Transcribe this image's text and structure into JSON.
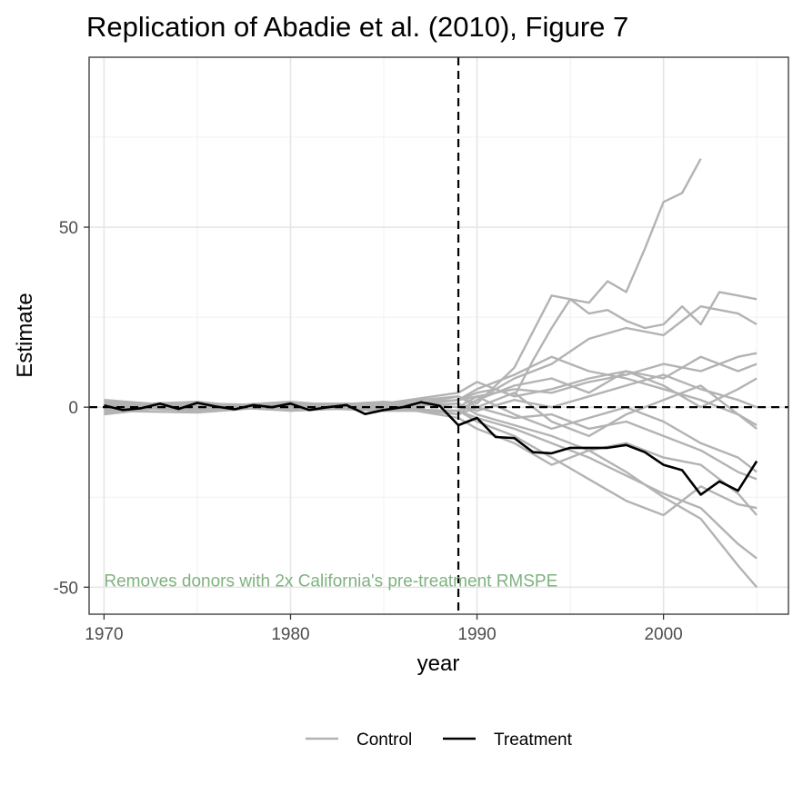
{
  "chart_data": {
    "type": "line",
    "title": "Replication of Abadie et al. (2010), Figure 7",
    "xlabel": "year",
    "ylabel": "Estimate",
    "xlim": [
      1969.2,
      2006.7
    ],
    "ylim": [
      -57.5,
      97.2
    ],
    "x_ticks": [
      1970,
      1980,
      1990,
      2000
    ],
    "x_tick_labels": [
      "1970",
      "1980",
      "1990",
      "2000"
    ],
    "y_ticks": [
      -50,
      0,
      50
    ],
    "y_tick_labels": [
      "-50",
      "0",
      "50"
    ],
    "grid": true,
    "treatment_year": 1989,
    "annotation": {
      "text": "Removes donors with 2x California's pre-treatment  RMSPE",
      "x": 1970,
      "y": -48
    },
    "legend": {
      "position": "bottom",
      "entries": [
        {
          "label": "Control"
        },
        {
          "label": "Treatment"
        }
      ]
    },
    "colors": {
      "control": "#b3b3b3",
      "treatment": "#000000",
      "annotation": "#7fb27f"
    },
    "treatment": {
      "name": "Treatment",
      "x": [
        1970,
        1971,
        1972,
        1973,
        1974,
        1975,
        1976,
        1977,
        1978,
        1979,
        1980,
        1981,
        1982,
        1983,
        1984,
        1985,
        1986,
        1987,
        1988,
        1989,
        1990,
        1991,
        1992,
        1993,
        1994,
        1995,
        1996,
        1997,
        1998,
        1999,
        2000,
        2001,
        2002,
        2003,
        2004,
        2005
      ],
      "values": [
        0.5,
        -0.8,
        -0.3,
        1.0,
        -0.5,
        1.2,
        0.2,
        -0.6,
        0.6,
        0.0,
        1.0,
        -0.8,
        0.0,
        0.6,
        -1.9,
        -0.8,
        0.0,
        1.4,
        0.4,
        -5.0,
        -3.0,
        -8.3,
        -8.6,
        -12.5,
        -12.8,
        -11.3,
        -11.3,
        -11.3,
        -10.5,
        -12.5,
        -16.0,
        -17.5,
        -24.3,
        -20.6,
        -23.2,
        -15.0
      ]
    },
    "controls": [
      {
        "x": [
          1970,
          1975,
          1980,
          1985,
          1989,
          1990,
          1991,
          1992,
          1993,
          1994,
          1995,
          1996,
          1997,
          1998,
          1999,
          2000,
          2001,
          2002
        ],
        "values": [
          0.5,
          1.5,
          -1.0,
          0.5,
          2.0,
          4.0,
          5.0,
          3.0,
          13.0,
          22.0,
          30.0,
          29.0,
          35.0,
          32.0,
          44.0,
          57.0,
          59.5,
          69.0
        ]
      },
      {
        "x": [
          1970,
          1975,
          1980,
          1985,
          1989,
          1990,
          1991,
          1992,
          1993,
          1994,
          1995,
          1996,
          1997,
          1998,
          1999,
          2000,
          2001,
          2002,
          2003,
          2004,
          2005
        ],
        "values": [
          -0.5,
          1.0,
          0.5,
          -0.5,
          3.0,
          1.0,
          6.0,
          11.0,
          21.0,
          31.0,
          30.0,
          26.0,
          27.0,
          24.0,
          22.0,
          23.0,
          28.0,
          23.0,
          32.0,
          31.0,
          30.0
        ]
      },
      {
        "x": [
          1970,
          1975,
          1980,
          1985,
          1989,
          1990,
          1992,
          1994,
          1996,
          1998,
          2000,
          2002,
          2004,
          2005
        ],
        "values": [
          1.0,
          -1.0,
          0.5,
          1.0,
          -2.0,
          2.0,
          8.0,
          12.0,
          19.0,
          22.0,
          20.0,
          28.0,
          26.0,
          23.0
        ]
      },
      {
        "x": [
          1970,
          1975,
          1980,
          1985,
          1989,
          1990,
          1992,
          1994,
          1996,
          1998,
          2000,
          2002,
          2004,
          2005
        ],
        "values": [
          -1.0,
          0.5,
          -0.5,
          0.0,
          1.0,
          -2.0,
          -5.0,
          -8.0,
          -12.0,
          -18.0,
          -25.0,
          -31.0,
          -44.0,
          -50.0
        ]
      },
      {
        "x": [
          1970,
          1975,
          1980,
          1985,
          1989,
          1990,
          1992,
          1994,
          1996,
          1998,
          2000,
          2002,
          2004,
          2005
        ],
        "values": [
          0.5,
          -0.5,
          1.0,
          -1.0,
          -1.0,
          -3.0,
          -6.0,
          -10.0,
          -14.0,
          -19.0,
          -24.0,
          -28.0,
          -38.0,
          -42.0
        ]
      },
      {
        "x": [
          1970,
          1975,
          1980,
          1985,
          1989,
          1990,
          1992,
          1994,
          1996,
          1998,
          2000,
          2002,
          2004,
          2005
        ],
        "values": [
          2.0,
          0.0,
          -0.5,
          0.5,
          2.0,
          3.0,
          5.0,
          4.0,
          7.0,
          9.0,
          12.0,
          10.0,
          14.0,
          15.0
        ]
      },
      {
        "x": [
          1970,
          1975,
          1980,
          1985,
          1989,
          1990,
          1992,
          1994,
          1996,
          1998,
          2000,
          2002,
          2004,
          2005
        ],
        "values": [
          -1.5,
          1.0,
          0.0,
          -1.0,
          -1.0,
          -4.0,
          -8.0,
          -14.0,
          -20.0,
          -26.0,
          -30.0,
          -22.0,
          -27.0,
          -28.0
        ]
      },
      {
        "x": [
          1970,
          1975,
          1980,
          1985,
          1989,
          1990,
          1992,
          1994,
          1996,
          1998,
          2000,
          2002,
          2004,
          2005
        ],
        "values": [
          0.5,
          -1.0,
          0.5,
          1.0,
          4.0,
          7.0,
          3.0,
          5.0,
          8.0,
          10.0,
          6.0,
          0.0,
          5.0,
          8.0
        ]
      },
      {
        "x": [
          1970,
          1975,
          1980,
          1985,
          1989,
          1990,
          1992,
          1994,
          1996,
          1998,
          2000,
          2002,
          2004,
          2005
        ],
        "values": [
          -0.5,
          0.5,
          -1.0,
          0.0,
          -2.0,
          0.0,
          -3.0,
          -2.0,
          -6.0,
          -4.0,
          -8.0,
          -12.0,
          -18.0,
          -20.0
        ]
      },
      {
        "x": [
          1970,
          1975,
          1980,
          1985,
          1989,
          1990,
          1992,
          1994,
          1996,
          1998,
          2000,
          2002,
          2004,
          2005
        ],
        "values": [
          1.0,
          0.0,
          1.5,
          -0.5,
          2.0,
          5.0,
          9.0,
          14.0,
          10.0,
          8.0,
          5.0,
          2.0,
          -2.0,
          -5.0
        ]
      },
      {
        "x": [
          1970,
          1975,
          1980,
          1985,
          1989,
          1990,
          1992,
          1994,
          1996,
          1998,
          2000,
          2002,
          2004,
          2005
        ],
        "values": [
          -1.0,
          -1.5,
          0.5,
          0.5,
          -3.0,
          -6.0,
          -10.0,
          -16.0,
          -12.0,
          -10.0,
          -14.0,
          -16.0,
          -24.0,
          -30.0
        ]
      },
      {
        "x": [
          1970,
          1975,
          1980,
          1985,
          1989,
          1990,
          1992,
          1994,
          1996,
          1998,
          2000,
          2002,
          2004,
          2005
        ],
        "values": [
          0.0,
          1.0,
          -0.5,
          0.0,
          1.0,
          -1.0,
          2.0,
          0.0,
          3.0,
          6.0,
          9.0,
          5.0,
          2.0,
          0.0
        ]
      },
      {
        "x": [
          1970,
          1975,
          1980,
          1985,
          1989,
          1990,
          1992,
          1994,
          1996,
          1998,
          2000,
          2002,
          2004,
          2005
        ],
        "values": [
          1.5,
          -0.5,
          0.0,
          1.5,
          0.0,
          3.0,
          -2.0,
          -6.0,
          -3.0,
          0.0,
          -4.0,
          -10.0,
          -14.0,
          -18.0
        ]
      },
      {
        "x": [
          1970,
          1975,
          1980,
          1985,
          1989,
          1990,
          1992,
          1994,
          1996,
          1998,
          2000,
          2002,
          2004,
          2005
        ],
        "values": [
          -2.0,
          1.0,
          -0.5,
          -0.5,
          -1.0,
          2.0,
          6.0,
          8.0,
          4.0,
          10.0,
          8.0,
          14.0,
          10.0,
          12.0
        ]
      },
      {
        "x": [
          1970,
          1975,
          1980,
          1985,
          1989,
          1990,
          1992,
          1994,
          1996,
          1998,
          2000,
          2002,
          2004,
          2005
        ],
        "values": [
          0.0,
          -1.0,
          1.0,
          1.0,
          3.0,
          0.0,
          4.0,
          -4.0,
          -8.0,
          -2.0,
          2.0,
          6.0,
          -2.0,
          -6.0
        ]
      }
    ]
  }
}
